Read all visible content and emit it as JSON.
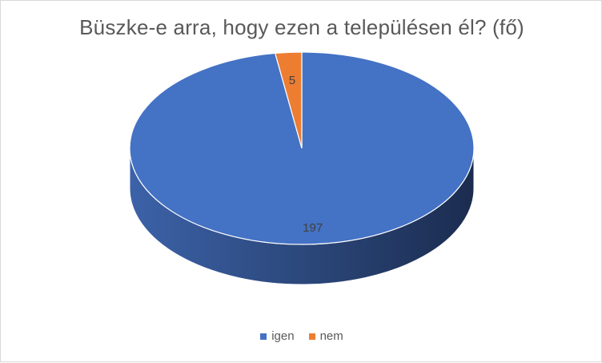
{
  "chart_data": {
    "type": "pie",
    "title": "Büszke-e arra, hogy ezen a településen él? (fő)",
    "categories": [
      "igen",
      "nem"
    ],
    "values": [
      197,
      5
    ],
    "colors": [
      "#4472c4",
      "#ed7d31"
    ],
    "side_colors": [
      "#2e4a7d",
      "#a85620"
    ],
    "data_labels": [
      "197",
      "5"
    ],
    "legend": "bottom",
    "three_d": true
  }
}
